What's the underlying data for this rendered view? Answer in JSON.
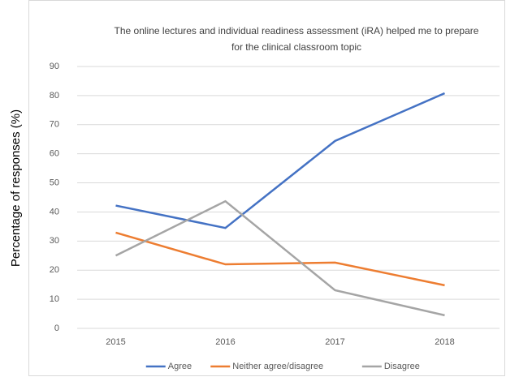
{
  "chart_data": {
    "type": "line",
    "title": "The online lectures and individual readiness assessment (iRA) helped me to prepare for the clinical classroom topic",
    "y_label": "Percentage of responses (%)",
    "categories": [
      "2015",
      "2016",
      "2017",
      "2018"
    ],
    "series": [
      {
        "name": "Agree",
        "color": "#4472c4",
        "values": [
          42.2,
          34.5,
          64.4,
          80.8
        ]
      },
      {
        "name": "Neither agree/disagree",
        "color": "#ed7d31",
        "values": [
          32.9,
          22,
          22.6,
          14.8
        ]
      },
      {
        "name": "Disagree",
        "color": "#a5a5a5",
        "values": [
          25,
          43.7,
          13.1,
          4.5
        ]
      }
    ],
    "ylim": [
      0,
      90
    ],
    "yticks": [
      0,
      10,
      20,
      30,
      40,
      50,
      60,
      70,
      80,
      90
    ],
    "grid": true,
    "legend": "bottom"
  }
}
